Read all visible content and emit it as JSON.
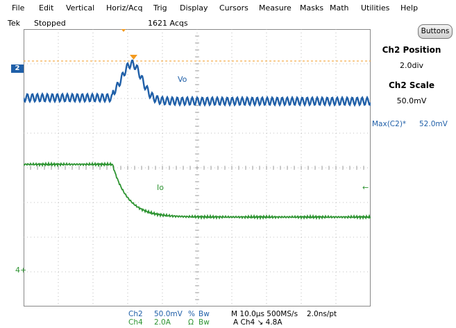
{
  "menu": [
    "File",
    "Edit",
    "Vertical",
    "Horiz/Acq",
    "Trig",
    "Display",
    "Cursors",
    "Measure",
    "Masks",
    "Math",
    "Utilities",
    "Help"
  ],
  "status": {
    "brand": "Tek",
    "state": "Stopped",
    "acqs": "1621 Acqs"
  },
  "side_panel": {
    "buttons_label": "Buttons",
    "title1": "Ch2 Position",
    "value1": "2.0div",
    "title2": "Ch2 Scale",
    "value2": "50.0mV"
  },
  "measurement": {
    "label": "Max(C2)*",
    "value": "52.0mV"
  },
  "waveform_labels": {
    "ch2_name": "Vo",
    "ch4_name": "Io",
    "ch2_marker": "2",
    "ch4_marker": "4"
  },
  "readout": {
    "ch2": {
      "name": "Ch2",
      "scale": "50.0mV",
      "coupling": "%",
      "bw": "Bw"
    },
    "ch4": {
      "name": "Ch4",
      "scale": "2.0A",
      "coupling": "Ω",
      "bw": "Bw"
    },
    "timebase": "M 10.0µs 500MS/s",
    "resolution": "2.0ns/pt",
    "trigger": "A  Ch4  ↘  4.8A"
  },
  "colors": {
    "ch2": "#1f5fa8",
    "ch4": "#2e9432",
    "trigger": "#f39a1f",
    "grid": "#888888"
  }
}
